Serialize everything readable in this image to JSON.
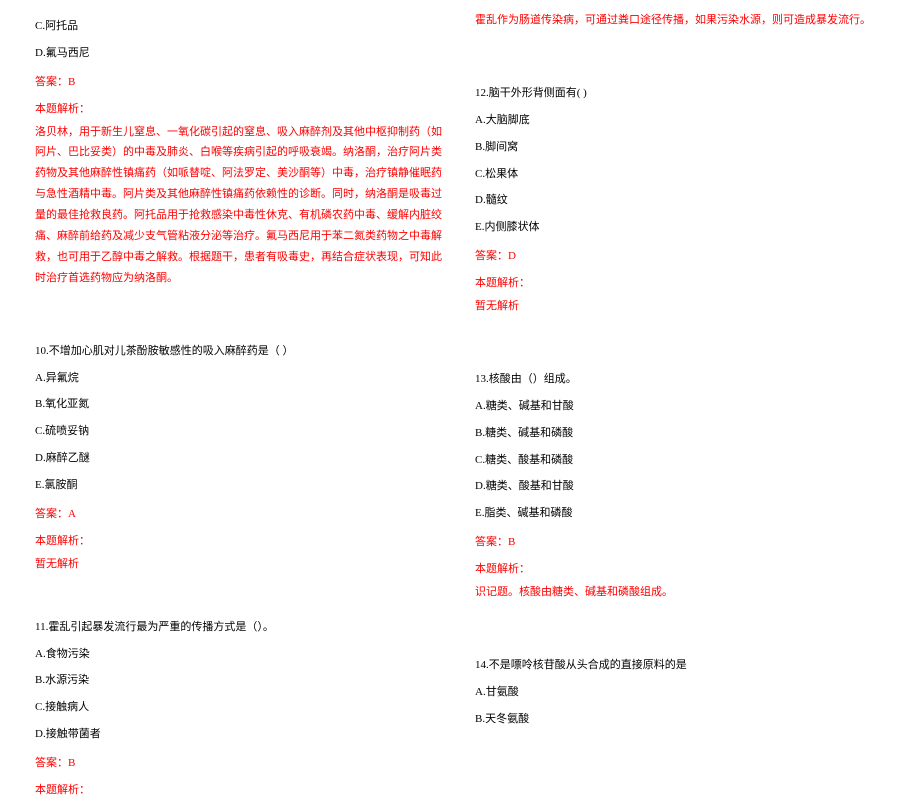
{
  "colors": {
    "text": "#000000",
    "highlight": "#ff0000",
    "background": "#ffffff"
  },
  "left": {
    "q_continued": {
      "options": {
        "c": "C.阿托品",
        "d": "D.氟马西尼"
      },
      "answer_label": "答案：B",
      "explain_label": "本题解析：",
      "explain_text": "洛贝林，用于新生儿窒息、一氧化碳引起的窒息、吸入麻醉剂及其他中枢抑制药（如阿片、巴比妥类）的中毒及肺炎、白喉等疾病引起的呼吸衰竭。纳洛酮，治疗阿片类药物及其他麻醉性镇痛药（如哌替啶、阿法罗定、美沙酮等）中毒，治疗镇静催眠药与急性酒精中毒。阿片类及其他麻醉性镇痛药依赖性的诊断。同时，纳洛酮是吸毒过量的最佳抢救良药。阿托品用于抢救感染中毒性休克、有机磷农药中毒、缓解内脏绞痛、麻醉前给药及减少支气管粘液分泌等治疗。氟马西尼用于苯二氮类药物之中毒解救，也可用于乙醇中毒之解救。根据题干，患者有吸毒史，再结合症状表现，可知此时治疗首选药物应为纳洛酮。"
    },
    "q10": {
      "stem": "10.不增加心肌对儿茶酚胺敏感性的吸入麻醉药是（  ）",
      "options": {
        "a": "A.异氟烷",
        "b": "B.氧化亚氮",
        "c": "C.硫喷妥钠",
        "d": "D.麻醉乙醚",
        "e": "E.氯胺酮"
      },
      "answer_label": "答案：A",
      "explain_label": "本题解析：",
      "explain_text": "暂无解析"
    },
    "q11": {
      "stem": "11.霍乱引起暴发流行最为严重的传播方式是（）。",
      "options": {
        "a": "A.食物污染",
        "b": "B.水源污染",
        "c": "C.接触病人",
        "d": "D.接触带菌者"
      },
      "answer_label": "答案：B",
      "explain_label": "本题解析："
    }
  },
  "right": {
    "q11_continued": {
      "explain_text": "霍乱作为肠道传染病，可通过粪口途径传播，如果污染水源，则可造成暴发流行。"
    },
    "q12": {
      "stem": "12.脑干外形背侧面有( )",
      "options": {
        "a": "A.大脑脚底",
        "b": "B.脚间窝",
        "c": "C.松果体",
        "d": "D.髓纹",
        "e": "E.内侧膝状体"
      },
      "answer_label": "答案：D",
      "explain_label": "本题解析：",
      "explain_text": "暂无解析"
    },
    "q13": {
      "stem": "13.核酸由（）组成。",
      "options": {
        "a": "A.糖类、碱基和甘酸",
        "b": "B.糖类、碱基和磷酸",
        "c": "C.糖类、酸基和磷酸",
        "d": "D.糖类、酸基和甘酸",
        "e": "E.脂类、碱基和磷酸"
      },
      "answer_label": "答案：B",
      "explain_label": "本题解析：",
      "explain_text": "识记题。核酸由糖类、碱基和磷酸组成。"
    },
    "q14": {
      "stem": "14.不是嘌呤核苷酸从头合成的直接原料的是",
      "options": {
        "a": "A.甘氨酸",
        "b": "B.天冬氨酸"
      }
    }
  }
}
